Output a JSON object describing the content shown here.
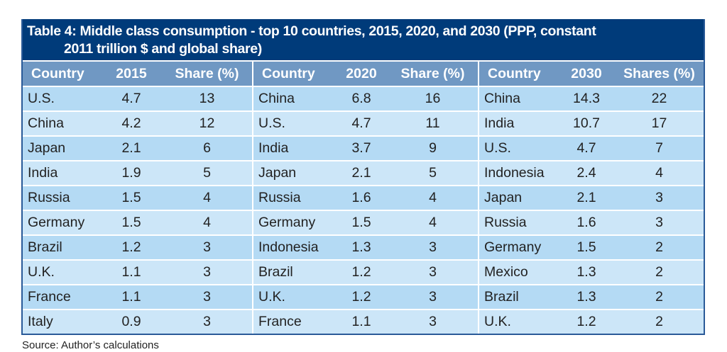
{
  "title_line1": "Table 4: Middle class consumption - top 10 countries, 2015, 2020, and 2030 (PPP, constant",
  "title_line2": "2011 trillion $ and global share)",
  "headers": [
    "Country",
    "2015",
    "Share (%)",
    "Country",
    "2020",
    "Share (%)",
    "Country",
    "2030",
    "Shares (%)"
  ],
  "rows": [
    [
      "U.S.",
      "4.7",
      "13",
      "China",
      "6.8",
      "16",
      "China",
      "14.3",
      "22"
    ],
    [
      "China",
      "4.2",
      "12",
      "U.S.",
      "4.7",
      "11",
      "India",
      "10.7",
      "17"
    ],
    [
      "Japan",
      "2.1",
      "6",
      "India",
      "3.7",
      "9",
      "U.S.",
      "4.7",
      "7"
    ],
    [
      "India",
      "1.9",
      "5",
      "Japan",
      "2.1",
      "5",
      "Indonesia",
      "2.4",
      "4"
    ],
    [
      "Russia",
      "1.5",
      "4",
      "Russia",
      "1.6",
      "4",
      "Japan",
      "2.1",
      "3"
    ],
    [
      "Germany",
      "1.5",
      "4",
      "Germany",
      "1.5",
      "4",
      "Russia",
      "1.6",
      "3"
    ],
    [
      "Brazil",
      "1.2",
      "3",
      "Indonesia",
      "1.3",
      "3",
      "Germany",
      "1.5",
      "2"
    ],
    [
      "U.K.",
      "1.1",
      "3",
      "Brazil",
      "1.2",
      "3",
      "Mexico",
      "1.3",
      "2"
    ],
    [
      "France",
      "1.1",
      "3",
      "U.K.",
      "1.2",
      "3",
      "Brazil",
      "1.3",
      "2"
    ],
    [
      "Italy",
      "0.9",
      "3",
      "France",
      "1.1",
      "3",
      "U.K.",
      "1.2",
      "2"
    ]
  ],
  "source": "Source: Author’s calculations",
  "colors": {
    "title_bg": "#003b7a",
    "header_bg": "#7098c3",
    "row_odd": "#b4daf4",
    "row_even": "#cce6f8"
  }
}
